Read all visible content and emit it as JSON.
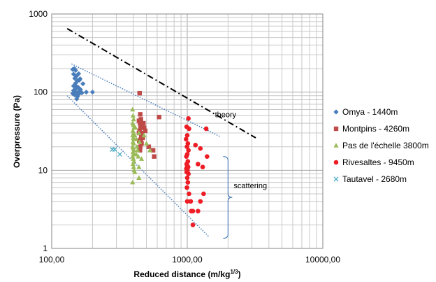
{
  "chart_data": {
    "type": "scatter",
    "xlabel": "Reduced distance (m/kg",
    "xlabel_sup": "1/3",
    "xlabel_end": ")",
    "ylabel": "Overpressure (Pa)",
    "x_scale": "log",
    "y_scale": "log",
    "xlim": [
      100,
      10000
    ],
    "ylim": [
      1,
      1000
    ],
    "grid": true,
    "legend_position": "right",
    "x_tick_labels": [
      "100,00",
      "1000,00",
      "10000,00"
    ],
    "y_tick_labels": [
      "1",
      "10",
      "100",
      "1000"
    ],
    "series": [
      {
        "name": "Omya - 1440m",
        "marker": "diamond",
        "color": "#4a7ebb",
        "points": [
          [
            143,
            195
          ],
          [
            147,
            200
          ],
          [
            150,
            190
          ],
          [
            145,
            170
          ],
          [
            152,
            160
          ],
          [
            148,
            150
          ],
          [
            155,
            140
          ],
          [
            150,
            130
          ],
          [
            145,
            120
          ],
          [
            152,
            118
          ],
          [
            157,
            115
          ],
          [
            150,
            110
          ],
          [
            145,
            105
          ],
          [
            148,
            100
          ],
          [
            152,
            98
          ],
          [
            158,
            102
          ],
          [
            163,
            108
          ],
          [
            167,
            98
          ],
          [
            160,
            96
          ],
          [
            155,
            94
          ],
          [
            148,
            92
          ],
          [
            143,
            96
          ],
          [
            170,
            128
          ],
          [
            162,
            148
          ],
          [
            158,
            172
          ],
          [
            180,
            100
          ],
          [
            200,
            100
          ],
          [
            155,
            88
          ],
          [
            153,
            82
          ],
          [
            160,
            142
          ]
        ]
      },
      {
        "name": "Montpins - 4260m",
        "marker": "square",
        "color": "#be4b48",
        "points": [
          [
            445,
            97
          ],
          [
            450,
            52
          ],
          [
            455,
            45
          ],
          [
            440,
            43
          ],
          [
            448,
            40
          ],
          [
            460,
            37
          ],
          [
            452,
            35
          ],
          [
            445,
            32
          ],
          [
            440,
            30
          ],
          [
            458,
            28
          ],
          [
            465,
            30
          ],
          [
            470,
            26
          ],
          [
            455,
            25
          ],
          [
            442,
            24
          ],
          [
            460,
            22
          ],
          [
            450,
            20
          ],
          [
            448,
            18
          ],
          [
            520,
            20
          ],
          [
            560,
            18
          ],
          [
            570,
            15
          ],
          [
            620,
            48
          ],
          [
            480,
            35
          ],
          [
            475,
            40
          ],
          [
            490,
            32
          ]
        ]
      },
      {
        "name": "Pas de l'échelle 3800m",
        "marker": "triangle",
        "color": "#9bbb59",
        "points": [
          [
            395,
            60
          ],
          [
            398,
            50
          ],
          [
            402,
            45
          ],
          [
            396,
            40
          ],
          [
            400,
            38
          ],
          [
            404,
            35
          ],
          [
            398,
            32
          ],
          [
            402,
            30
          ],
          [
            396,
            28
          ],
          [
            400,
            26
          ],
          [
            404,
            25
          ],
          [
            398,
            23
          ],
          [
            402,
            22
          ],
          [
            396,
            20
          ],
          [
            400,
            19
          ],
          [
            404,
            18
          ],
          [
            398,
            17
          ],
          [
            402,
            16
          ],
          [
            396,
            15
          ],
          [
            400,
            14
          ],
          [
            404,
            13
          ],
          [
            398,
            12
          ],
          [
            402,
            11
          ],
          [
            420,
            25
          ],
          [
            425,
            20
          ],
          [
            430,
            18
          ],
          [
            435,
            15
          ],
          [
            440,
            30
          ],
          [
            415,
            35
          ],
          [
            410,
            28
          ],
          [
            445,
            23
          ],
          [
            405,
            10
          ],
          [
            410,
            9.5
          ],
          [
            440,
            11
          ],
          [
            395,
            7
          ],
          [
            440,
            8
          ],
          [
            500,
            22
          ],
          [
            530,
            18
          ],
          [
            420,
            16
          ],
          [
            460,
            14
          ],
          [
            480,
            28
          ]
        ]
      },
      {
        "name": "Rivesaltes - 9450m",
        "marker": "circle",
        "color": "#ee1c25",
        "points": [
          [
            1020,
            46
          ],
          [
            990,
            36
          ],
          [
            1030,
            34
          ],
          [
            1000,
            28
          ],
          [
            980,
            25
          ],
          [
            1010,
            22
          ],
          [
            995,
            20
          ],
          [
            1020,
            18
          ],
          [
            1000,
            16
          ],
          [
            985,
            15
          ],
          [
            1010,
            13
          ],
          [
            990,
            12
          ],
          [
            1000,
            11.5
          ],
          [
            1015,
            11
          ],
          [
            985,
            10.5
          ],
          [
            1005,
            10
          ],
          [
            990,
            9.5
          ],
          [
            1020,
            9
          ],
          [
            1000,
            8
          ],
          [
            1010,
            7
          ],
          [
            995,
            6
          ],
          [
            1030,
            5
          ],
          [
            1000,
            4
          ],
          [
            1060,
            4
          ],
          [
            1070,
            3
          ],
          [
            1100,
            3
          ],
          [
            1200,
            3
          ],
          [
            1250,
            4
          ],
          [
            1320,
            5
          ],
          [
            1380,
            34
          ],
          [
            1250,
            19
          ],
          [
            1150,
            21
          ],
          [
            1200,
            12
          ],
          [
            1300,
            11
          ],
          [
            1400,
            15
          ],
          [
            1100,
            2
          ]
        ]
      },
      {
        "name": "Tautavel - 2680m",
        "marker": "x",
        "color": "#4bacc6",
        "points": [
          [
            280,
            18.5
          ],
          [
            292,
            18.5
          ],
          [
            318,
            16
          ]
        ]
      }
    ],
    "lines": [
      {
        "name": "theory",
        "style": "dash-dot",
        "color": "#000000",
        "points": [
          [
            130,
            650
          ],
          [
            3200,
            26
          ]
        ]
      },
      {
        "name": "upper-envelope",
        "style": "dotted",
        "color": "#4a7ebb",
        "points": [
          [
            140,
            230
          ],
          [
            1750,
            27
          ]
        ]
      },
      {
        "name": "lower-envelope",
        "style": "dotted",
        "color": "#4a7ebb",
        "points": [
          [
            130,
            90
          ],
          [
            1450,
            1.4
          ]
        ]
      }
    ],
    "annotations": [
      {
        "text": "theory",
        "at": [
          1600,
          48
        ]
      },
      {
        "text": "scattering",
        "at": [
          2200,
          5.9
        ]
      }
    ],
    "bracket": {
      "x": 2000,
      "y_top": 15,
      "y_bottom": 1.35
    }
  }
}
